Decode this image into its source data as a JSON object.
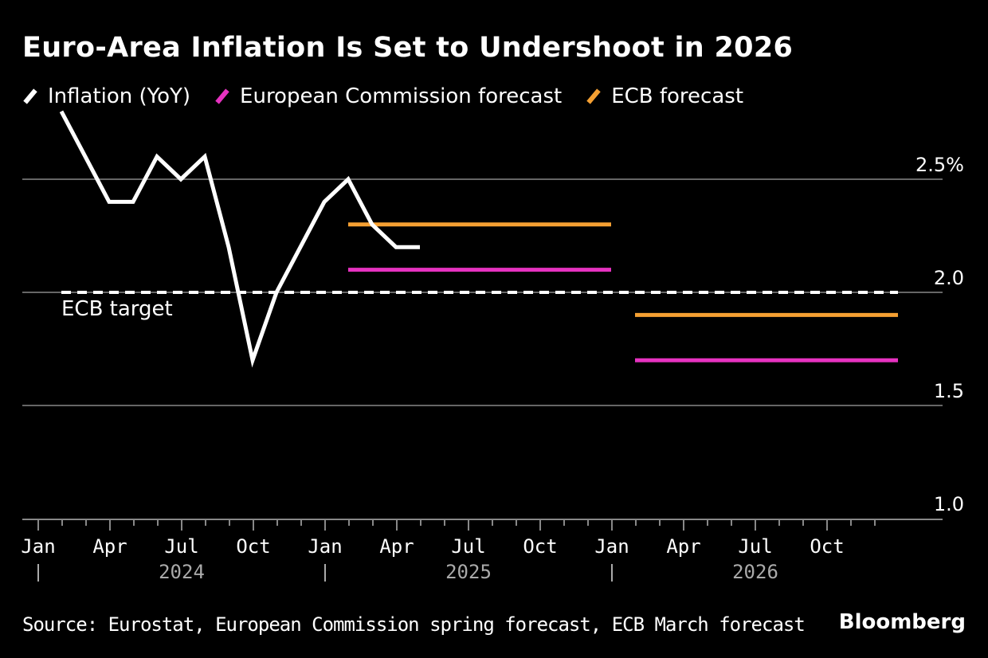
{
  "chart_data": {
    "type": "line",
    "title": "Euro-Area Inflation Is Set to Undershoot in 2026",
    "colors": {
      "inflation": "#ffffff",
      "ec": "#e632c0",
      "ecb": "#f5a032",
      "grid": "#666666"
    },
    "legend_position": "top-left",
    "grid": true,
    "ylim": [
      1.0,
      2.8
    ],
    "y_ticks": [
      {
        "value": 2.5,
        "label": "2.5%"
      },
      {
        "value": 2.0,
        "label": "2.0"
      },
      {
        "value": 1.5,
        "label": "1.5"
      },
      {
        "value": 1.0,
        "label": "1.0"
      }
    ],
    "x_range": [
      "2024-01",
      "2026-12"
    ],
    "x_tick_labels": [
      "Jan",
      "Apr",
      "Jul",
      "Oct",
      "Jan",
      "Apr",
      "Jul",
      "Oct",
      "Jan",
      "Apr",
      "Jul",
      "Oct"
    ],
    "x_year_labels": [
      "2024",
      "2025",
      "2026"
    ],
    "series": [
      {
        "name": "Inflation (YoY)",
        "x": [
          "2024-01",
          "2024-02",
          "2024-03",
          "2024-04",
          "2024-05",
          "2024-06",
          "2024-07",
          "2024-08",
          "2024-09",
          "2024-10",
          "2024-11",
          "2024-12",
          "2025-01",
          "2025-02",
          "2025-03",
          "2025-04"
        ],
        "values": [
          2.8,
          2.6,
          2.4,
          2.4,
          2.6,
          2.5,
          2.6,
          2.2,
          1.7,
          2.0,
          2.2,
          2.4,
          2.5,
          2.3,
          2.2,
          2.2
        ]
      },
      {
        "name": "European Commission forecast",
        "segments": [
          {
            "from": "2025-02",
            "to": "2025-12",
            "value": 2.1
          },
          {
            "from": "2026-02",
            "to": "2026-12",
            "value": 1.7
          }
        ]
      },
      {
        "name": "ECB forecast",
        "segments": [
          {
            "from": "2025-02",
            "to": "2025-12",
            "value": 2.3
          },
          {
            "from": "2026-02",
            "to": "2026-12",
            "value": 1.9
          }
        ]
      }
    ],
    "annotations": [
      {
        "text": "ECB target",
        "value": 2.0,
        "from": "2024-01",
        "to": "2026-12"
      }
    ]
  },
  "footer": {
    "source": "Source: Eurostat, European Commission spring forecast, ECB March forecast",
    "brand": "Bloomberg"
  }
}
